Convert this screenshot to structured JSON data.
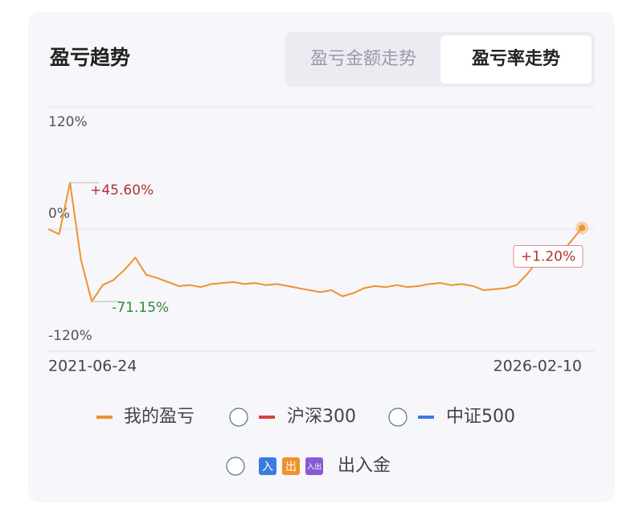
{
  "header": {
    "title": "盈亏趋势"
  },
  "tabs": [
    "盈亏金额走势",
    "盈亏率走势"
  ],
  "chart_data": {
    "type": "line",
    "categories": [
      "2021-06-24",
      null,
      null,
      null,
      null,
      null,
      null,
      null,
      null,
      null,
      null,
      null,
      null,
      null,
      null,
      null,
      null,
      null,
      null,
      null,
      null,
      null,
      null,
      null,
      null,
      null,
      null,
      null,
      null,
      null,
      null,
      null,
      null,
      null,
      null,
      null,
      null,
      null,
      null,
      null,
      null,
      null,
      null,
      null,
      null,
      null,
      null,
      null,
      null,
      "2026-02-10"
    ],
    "series": [
      {
        "name": "我的盈亏",
        "color": "#f0922b",
        "values": [
          0,
          -5,
          45.6,
          -30,
          -71.15,
          -55,
          -50,
          -40,
          -28,
          -45,
          -48,
          -52,
          -56,
          -55,
          -57,
          -54,
          -53,
          -52,
          -54,
          -53,
          -55,
          -54,
          -56,
          -58,
          -60,
          -62,
          -60,
          -66,
          -63,
          -58,
          -56,
          -57,
          -55,
          -57,
          -56,
          -54,
          -53,
          -55,
          -54,
          -56,
          -60,
          -59,
          -58,
          -55,
          -44,
          -30,
          -32,
          -25,
          -12,
          1.2
        ],
        "value_labels": [
          null,
          null,
          "+45.60%",
          null,
          "-71.15%",
          null,
          null,
          null,
          null,
          null,
          null,
          null,
          null,
          null,
          null,
          null,
          null,
          null,
          null,
          null,
          null,
          null,
          null,
          null,
          null,
          null,
          null,
          null,
          null,
          null,
          null,
          null,
          null,
          null,
          null,
          null,
          null,
          null,
          null,
          null,
          null,
          null,
          null,
          null,
          null,
          null,
          null,
          null,
          null,
          "+1.20%"
        ]
      }
    ],
    "ylim": [
      -120,
      120
    ],
    "yticks": [
      {
        "value": 120,
        "label": "120%"
      },
      {
        "value": 0,
        "label": "0%"
      },
      {
        "value": -120,
        "label": "-120%"
      }
    ],
    "grid": true
  },
  "legend_extra": [
    {
      "name": "沪深300",
      "color": "#d9403a"
    },
    {
      "name": "中证500",
      "color": "#3b7be0"
    }
  ],
  "flow_legend": {
    "name": "出入金",
    "icons": [
      "入",
      "出",
      "入出"
    ]
  }
}
